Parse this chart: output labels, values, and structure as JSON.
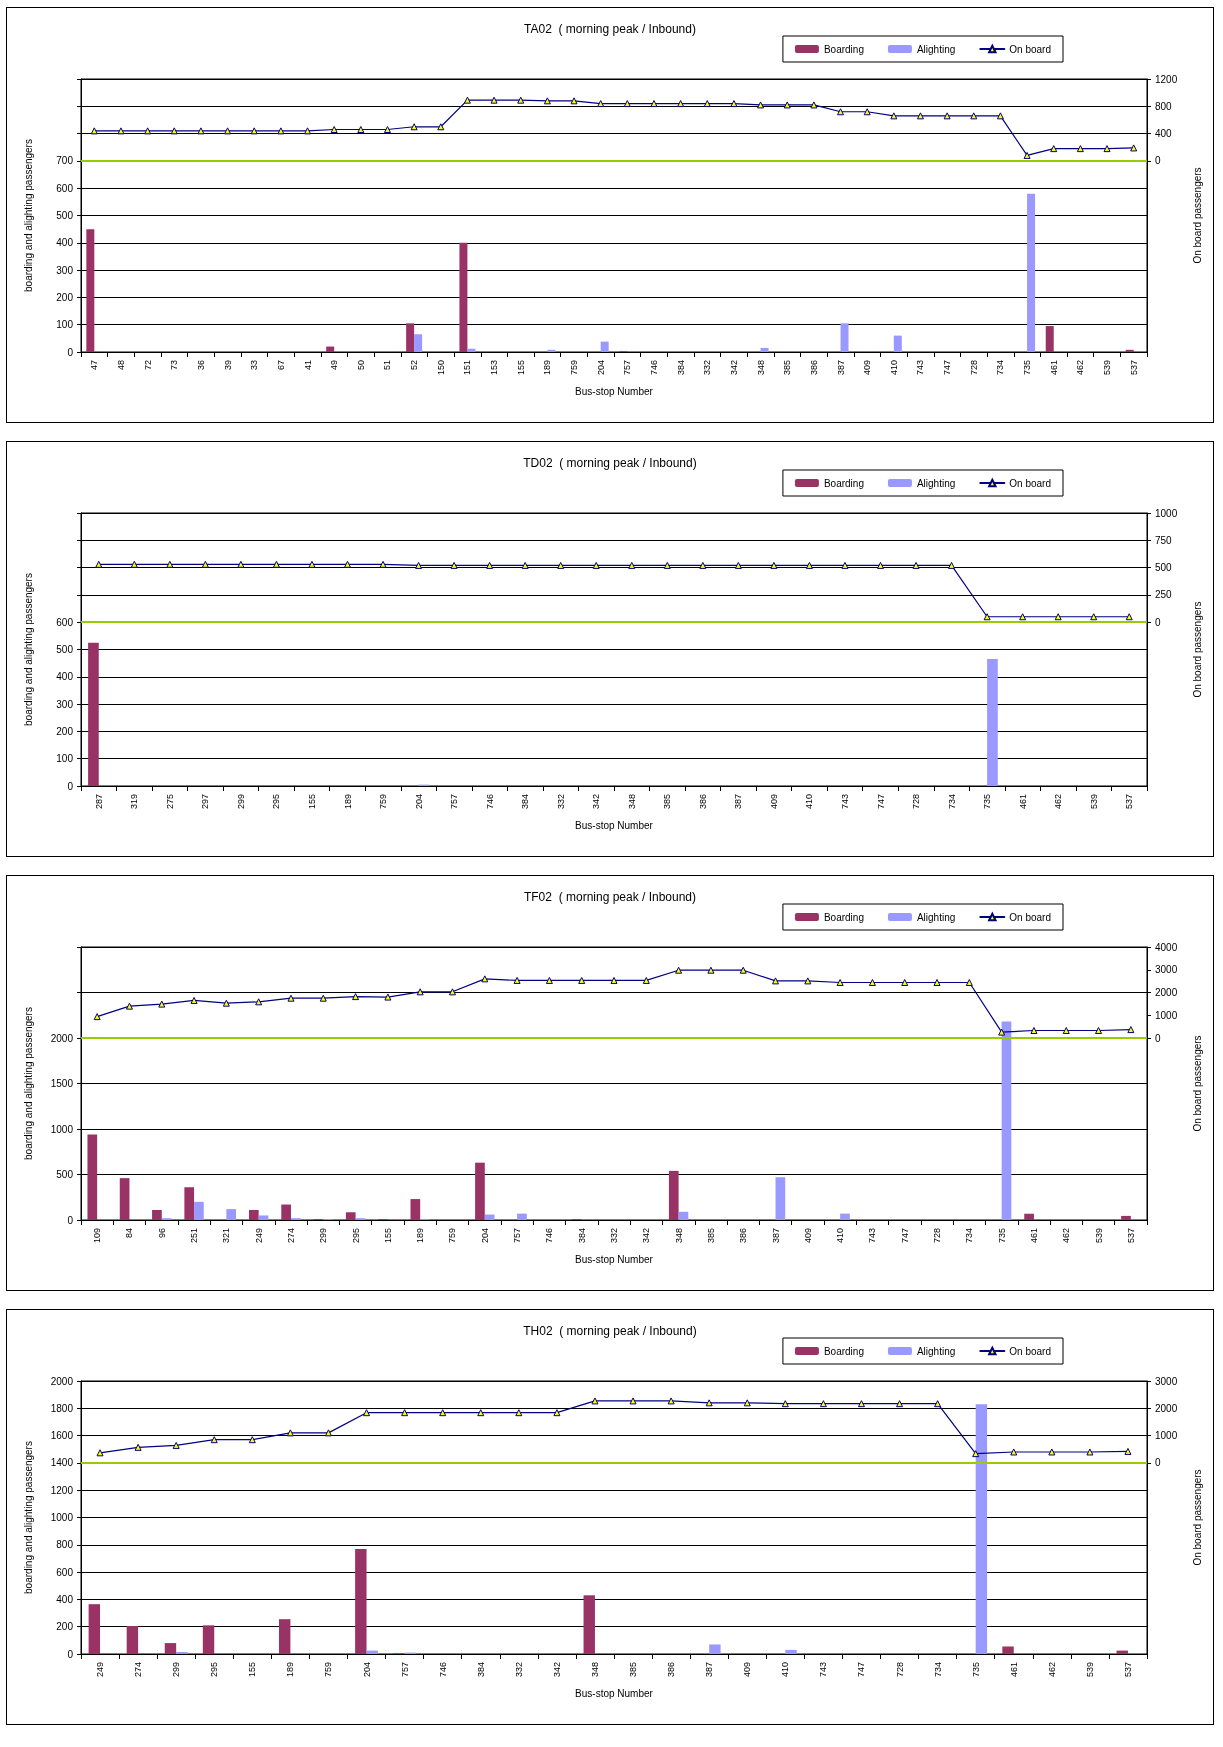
{
  "chart_data": [
    {
      "type": "bar",
      "title": "TA02  ( morning peak / Inbound)",
      "xlabel": "Bus-stop Number",
      "ylabel": "boarding and alighting passengers",
      "y2label": "On board passengers",
      "categories": [
        "47",
        "48",
        "72",
        "73",
        "36",
        "39",
        "33",
        "67",
        "41",
        "49",
        "50",
        "51",
        "52",
        "150",
        "151",
        "153",
        "155",
        "189",
        "759",
        "204",
        "757",
        "746",
        "384",
        "332",
        "342",
        "348",
        "385",
        "386",
        "387",
        "409",
        "410",
        "743",
        "747",
        "728",
        "734",
        "735",
        "461",
        "462",
        "539",
        "537"
      ],
      "series": [
        {
          "name": "Boarding",
          "color": "#993366",
          "values": [
            450,
            0,
            0,
            0,
            0,
            0,
            0,
            0,
            0,
            20,
            0,
            0,
            105,
            0,
            400,
            0,
            0,
            0,
            0,
            0,
            3,
            0,
            0,
            0,
            0,
            0,
            0,
            0,
            0,
            0,
            0,
            0,
            0,
            0,
            0,
            0,
            95,
            0,
            0,
            8
          ]
        },
        {
          "name": "Alighting",
          "color": "#9999ff",
          "values": [
            0,
            0,
            0,
            0,
            0,
            0,
            0,
            0,
            0,
            0,
            0,
            0,
            65,
            0,
            12,
            0,
            0,
            8,
            0,
            38,
            0,
            0,
            0,
            0,
            0,
            15,
            0,
            0,
            105,
            0,
            60,
            0,
            0,
            0,
            0,
            580,
            0,
            0,
            0,
            0
          ]
        },
        {
          "name": "On board",
          "type": "line",
          "axis": "y2",
          "color": "#000080",
          "values": [
            440,
            440,
            440,
            440,
            440,
            440,
            440,
            440,
            440,
            460,
            460,
            460,
            500,
            500,
            890,
            890,
            890,
            880,
            880,
            840,
            840,
            840,
            840,
            840,
            840,
            820,
            820,
            820,
            720,
            720,
            660,
            660,
            660,
            660,
            660,
            80,
            180,
            180,
            180,
            190
          ]
        }
      ],
      "ylim": [
        0,
        1000
      ],
      "yticks": [
        0,
        100,
        200,
        300,
        400,
        500,
        600,
        700,
        {
          "value": 800,
          "label": null
        },
        {
          "value": 900,
          "label": null
        },
        {
          "value": 1000,
          "label": null
        }
      ],
      "y2lim": [
        -2800,
        1200
      ],
      "y2ticks": [
        0,
        400,
        800,
        1200
      ],
      "ref_lines": [
        {
          "axis": "y2",
          "value": 0,
          "color": "#99cc00"
        }
      ],
      "grid": "y",
      "legend": "top right",
      "marker": "triangle"
    },
    {
      "type": "bar",
      "title": "TD02  ( morning peak / Inbound)",
      "xlabel": "Bus-stop Number",
      "ylabel": "boarding and alighting passengers",
      "y2label": "On board passengers",
      "categories": [
        "287",
        "319",
        "275",
        "297",
        "299",
        "295",
        "155",
        "189",
        "759",
        "204",
        "757",
        "746",
        "384",
        "332",
        "342",
        "348",
        "385",
        "386",
        "387",
        "409",
        "410",
        "743",
        "747",
        "728",
        "734",
        "735",
        "461",
        "462",
        "539",
        "537"
      ],
      "series": [
        {
          "name": "Boarding",
          "color": "#993366",
          "values": [
            525,
            0,
            0,
            0,
            0,
            0,
            0,
            0,
            0,
            0,
            0,
            0,
            0,
            0,
            0,
            0,
            0,
            0,
            0,
            0,
            0,
            0,
            0,
            0,
            0,
            0,
            0,
            0,
            0,
            0
          ]
        },
        {
          "name": "Alighting",
          "color": "#9999ff",
          "values": [
            0,
            0,
            0,
            0,
            0,
            0,
            0,
            0,
            0,
            5,
            0,
            0,
            0,
            0,
            0,
            0,
            0,
            0,
            0,
            0,
            0,
            0,
            0,
            0,
            0,
            465,
            0,
            0,
            0,
            0
          ]
        },
        {
          "name": "On board",
          "type": "line",
          "axis": "y2",
          "color": "#000080",
          "values": [
            530,
            530,
            530,
            530,
            530,
            530,
            530,
            530,
            530,
            520,
            520,
            520,
            520,
            520,
            520,
            520,
            520,
            520,
            520,
            520,
            520,
            520,
            520,
            520,
            520,
            50,
            50,
            50,
            50,
            50
          ]
        }
      ],
      "ylim": [
        0,
        1000
      ],
      "yticks": [
        0,
        100,
        200,
        300,
        400,
        500,
        600,
        {
          "value": 700,
          "label": null
        },
        {
          "value": 800,
          "label": null
        },
        {
          "value": 900,
          "label": null
        },
        {
          "value": 1000,
          "label": null
        }
      ],
      "y2lim": [
        -1500,
        1000
      ],
      "y2ticks": [
        0,
        250,
        500,
        750,
        1000
      ],
      "ref_lines": [
        {
          "axis": "y2",
          "value": 0,
          "color": "#99cc00"
        }
      ],
      "grid": "y",
      "legend": "top right",
      "marker": "triangle"
    },
    {
      "type": "bar",
      "title": "TF02  ( morning peak / Inbound)",
      "xlabel": "Bus-stop Number",
      "ylabel": "boarding and alighting passengers",
      "y2label": "On board passengers",
      "categories": [
        "109",
        "84",
        "96",
        "251",
        "321",
        "249",
        "274",
        "299",
        "295",
        "155",
        "189",
        "759",
        "204",
        "757",
        "746",
        "384",
        "332",
        "342",
        "348",
        "385",
        "386",
        "387",
        "409",
        "410",
        "743",
        "747",
        "728",
        "734",
        "735",
        "461",
        "462",
        "539",
        "537"
      ],
      "series": [
        {
          "name": "Boarding",
          "color": "#993366",
          "values": [
            940,
            460,
            110,
            360,
            0,
            110,
            170,
            10,
            85,
            10,
            230,
            0,
            630,
            0,
            0,
            10,
            0,
            0,
            540,
            0,
            0,
            0,
            0,
            0,
            0,
            0,
            0,
            0,
            0,
            70,
            0,
            0,
            45
          ]
        },
        {
          "name": "Alighting",
          "color": "#9999ff",
          "values": [
            0,
            0,
            20,
            200,
            120,
            50,
            20,
            10,
            20,
            0,
            10,
            0,
            60,
            70,
            0,
            0,
            0,
            0,
            90,
            0,
            0,
            470,
            0,
            70,
            0,
            0,
            0,
            0,
            2180,
            0,
            0,
            0,
            0
          ]
        },
        {
          "name": "On board",
          "type": "line",
          "axis": "y2",
          "color": "#000080",
          "values": [
            940,
            1400,
            1490,
            1650,
            1530,
            1590,
            1750,
            1750,
            1820,
            1800,
            2030,
            2030,
            2600,
            2530,
            2530,
            2530,
            2530,
            2530,
            2980,
            2980,
            2980,
            2510,
            2510,
            2440,
            2440,
            2440,
            2440,
            2440,
            260,
            330,
            330,
            330,
            370
          ]
        }
      ],
      "ylim": [
        0,
        3000
      ],
      "yticks": [
        0,
        500,
        1000,
        1500,
        2000,
        {
          "value": 2500,
          "label": null
        },
        {
          "value": 3000,
          "label": null
        }
      ],
      "y2lim": [
        -8000,
        4000
      ],
      "y2ticks": [
        0,
        1000,
        2000,
        3000,
        4000
      ],
      "ref_lines": [
        {
          "axis": "y2",
          "value": 0,
          "color": "#99cc00"
        }
      ],
      "grid": "y",
      "legend": "top right",
      "marker": "triangle"
    },
    {
      "type": "bar",
      "title": "TH02  ( morning peak / Inbound)",
      "xlabel": "Bus-stop Number",
      "ylabel": "boarding and alighting passengers",
      "y2label": "On board passengers",
      "categories": [
        "249",
        "274",
        "299",
        "295",
        "155",
        "189",
        "759",
        "204",
        "757",
        "746",
        "384",
        "332",
        "342",
        "348",
        "385",
        "386",
        "387",
        "409",
        "410",
        "743",
        "747",
        "728",
        "734",
        "735",
        "461",
        "462",
        "539",
        "537"
      ],
      "series": [
        {
          "name": "Boarding",
          "color": "#993366",
          "values": [
            365,
            205,
            80,
            210,
            0,
            255,
            0,
            770,
            5,
            0,
            0,
            0,
            0,
            430,
            0,
            0,
            0,
            0,
            0,
            0,
            0,
            0,
            0,
            0,
            55,
            0,
            0,
            25
          ]
        },
        {
          "name": "Alighting",
          "color": "#9999ff",
          "values": [
            0,
            0,
            15,
            0,
            0,
            0,
            0,
            25,
            10,
            0,
            0,
            0,
            0,
            0,
            0,
            0,
            70,
            0,
            30,
            0,
            0,
            0,
            0,
            1830,
            0,
            0,
            0,
            0
          ]
        },
        {
          "name": "On board",
          "type": "line",
          "axis": "y2",
          "color": "#000080",
          "values": [
            370,
            570,
            640,
            850,
            850,
            1100,
            1100,
            1840,
            1840,
            1840,
            1840,
            1840,
            1840,
            2270,
            2270,
            2270,
            2200,
            2200,
            2170,
            2170,
            2170,
            2170,
            2170,
            340,
            400,
            400,
            400,
            420
          ]
        }
      ],
      "ylim": [
        0,
        2000
      ],
      "yticks": [
        0,
        200,
        400,
        600,
        800,
        1000,
        1200,
        1400,
        1600,
        1800,
        2000
      ],
      "y2lim": [
        -7000,
        3000
      ],
      "y2ticks": [
        0,
        1000,
        2000,
        3000
      ],
      "ref_lines": [
        {
          "axis": "y2",
          "value": 0,
          "color": "#99cc00"
        }
      ],
      "grid": "y",
      "legend": "top right",
      "marker": "triangle"
    }
  ]
}
